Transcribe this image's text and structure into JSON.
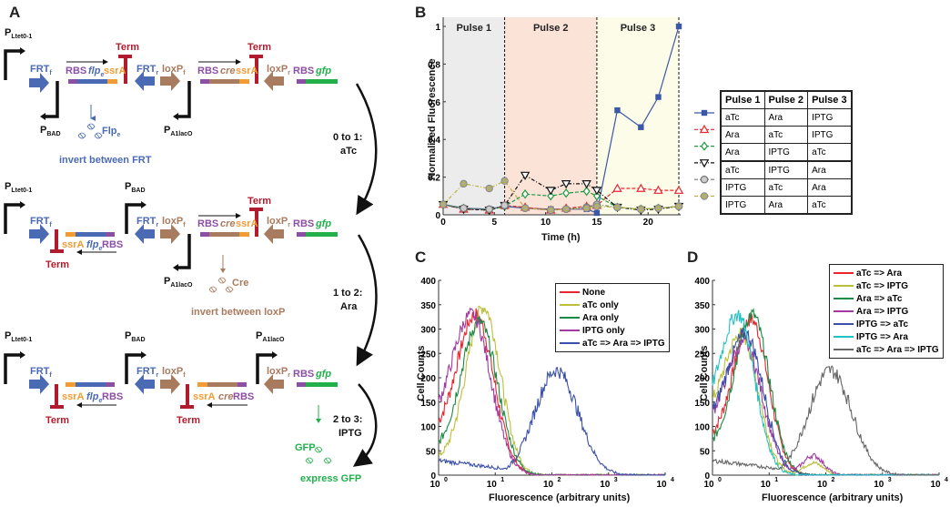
{
  "panels": {
    "A": {
      "label": "A"
    },
    "B": {
      "label": "B"
    },
    "C": {
      "label": "C"
    },
    "D": {
      "label": "D"
    }
  },
  "diagram": {
    "promoters": {
      "ltet": "P",
      "ltet_sub": "Ltet0-1",
      "bad": "P",
      "bad_sub": "BAD",
      "a1": "P",
      "a1_sub": "A1lacO"
    },
    "parts": {
      "frt_f": "FRT",
      "frt_f_sub": "f",
      "frt_r": "FRT",
      "frt_r_sub": "r",
      "loxp_f": "loxP",
      "loxp_f_sub": "f",
      "loxp_r": "loxP",
      "loxp_r_sub": "r",
      "rbs": "RBS",
      "flpe": "flp",
      "flpe_sub": "e",
      "ssra": "ssrA",
      "cre": "cre",
      "gfp": "gfp",
      "term": "Term"
    },
    "proteins": {
      "flpe": "Flp",
      "flpe_sub": "e",
      "flpe_action": "invert between FRT",
      "cre": "Cre",
      "cre_action": "invert between loxP",
      "gfp": "GFP",
      "gfp_action": "express GFP"
    },
    "transitions": [
      {
        "step": "0 to 1:",
        "inducer": "aTc"
      },
      {
        "step": "1 to 2:",
        "inducer": "Ara"
      },
      {
        "step": "2 to 3:",
        "inducer": "IPTG"
      }
    ],
    "colors": {
      "frt": "#4a6bb3",
      "rbs": "#8b4fa3",
      "ssra": "#f39b35",
      "lox": "#a87a5e",
      "gfp": "#22b04b",
      "term": "#b01c2e"
    }
  },
  "chart_data": [
    {
      "type": "line",
      "title": "",
      "xlabel": "Time (h)",
      "ylabel": "Normalized Fluorescence",
      "xlim": [
        0,
        23
      ],
      "ylim": [
        0,
        1
      ],
      "xticks": [
        0,
        5,
        10,
        15,
        20
      ],
      "yticks": [
        0,
        0.2,
        0.4,
        0.6,
        0.8,
        1
      ],
      "ytick_labels": [
        "0",
        "0.2",
        "0.4",
        "0.6",
        "0.8",
        "1"
      ],
      "regions": [
        {
          "label": "Pulse 1",
          "from": 0,
          "to": 6,
          "color": "#ececec"
        },
        {
          "label": "Pulse 2",
          "from": 6,
          "to": 15,
          "color": "#fbe3d8"
        },
        {
          "label": "Pulse 3",
          "from": 15,
          "to": 23,
          "color": "#fcfce8"
        }
      ],
      "x": [
        0,
        2,
        4.5,
        6,
        8,
        10.5,
        12,
        14,
        15,
        17,
        19.3,
        21,
        23
      ],
      "series": [
        {
          "name": "aTc / Ara / IPTG",
          "color": "#3a57a8",
          "marker": "square",
          "dash": "solid",
          "values": [
            0.055,
            0.035,
            0.03,
            0.045,
            0.035,
            0.03,
            0.03,
            0.03,
            0.01,
            0.555,
            0.465,
            0.625,
            1.0
          ]
        },
        {
          "name": "Ara / aTc / IPTG",
          "color": "#e8262e",
          "marker": "triangle-up",
          "dash": "dashed",
          "values": [
            0.055,
            0.03,
            0.025,
            0.05,
            0.04,
            0.025,
            0.035,
            0.045,
            0.05,
            0.14,
            0.14,
            0.13,
            0.13
          ]
        },
        {
          "name": "Ara / IPTG / aTc",
          "color": "#1f9a3e",
          "marker": "diamond",
          "dash": "dashed",
          "values": [
            0.055,
            0.035,
            0.025,
            0.045,
            0.11,
            0.1,
            0.115,
            0.125,
            0.1,
            0.04,
            0.03,
            0.035,
            0.045
          ]
        },
        {
          "name": "aTc / IPTG / Ara",
          "color": "#111111",
          "marker": "triangle-down",
          "dash": "dashdot",
          "values": [
            0.055,
            0.03,
            0.025,
            0.05,
            0.21,
            0.13,
            0.165,
            0.165,
            0.13,
            0.04,
            0.025,
            0.03,
            0.045
          ]
        },
        {
          "name": "IPTG / aTc / Ara",
          "color": "#777777",
          "marker": "circle",
          "dash": "dashdot",
          "values": [
            0.055,
            0.035,
            0.03,
            0.05,
            0.035,
            0.025,
            0.03,
            0.04,
            0.055,
            0.04,
            0.03,
            0.035,
            0.045
          ]
        },
        {
          "name": "IPTG / Ara / aTc",
          "color": "#b8b33a",
          "marker": "circle-square",
          "dash": "dashdot",
          "values": [
            0.055,
            0.165,
            0.14,
            0.18,
            0.035,
            0.025,
            0.03,
            0.035,
            0.045,
            0.04,
            0.03,
            0.035,
            0.045
          ]
        }
      ],
      "legend_table": {
        "headers": [
          "Pulse 1",
          "Pulse 2",
          "Pulse 3"
        ],
        "rows": [
          [
            "aTc",
            "Ara",
            "IPTG"
          ],
          [
            "Ara",
            "aTc",
            "IPTG"
          ],
          [
            "Ara",
            "IPTG",
            "aTc"
          ],
          [
            "aTc",
            "IPTG",
            "Ara"
          ],
          [
            "IPTG",
            "aTc",
            "Ara"
          ],
          [
            "IPTG",
            "Ara",
            "aTc"
          ]
        ]
      },
      "legend": "right"
    },
    {
      "type": "line",
      "title": "",
      "xlabel": "Fluorescence (arbitrary units)",
      "ylabel": "Cell Counts",
      "xscale": "log",
      "xlim": [
        1,
        10000
      ],
      "ylim": [
        0,
        400
      ],
      "xtick_labels": [
        "10",
        "10",
        "10",
        "10",
        "10"
      ],
      "xtick_exponents": [
        "0",
        "1",
        "2",
        "3",
        "4"
      ],
      "yticks": [
        0,
        50,
        100,
        150,
        200,
        250,
        300,
        350,
        400
      ],
      "legend": "top-right",
      "series": [
        {
          "name": "None",
          "color": "#e8262e",
          "peak_x": 4.5,
          "peak_y": 330,
          "width": 0.32,
          "left_base": 80
        },
        {
          "name": "aTc only",
          "color": "#bcbf3a",
          "peak_x": 6.2,
          "peak_y": 345,
          "width": 0.3,
          "left_base": 30
        },
        {
          "name": "Ara only",
          "color": "#1a8a45",
          "peak_x": 5.2,
          "peak_y": 315,
          "width": 0.32,
          "left_base": 45
        },
        {
          "name": "IPTG only",
          "color": "#a23aa0",
          "peak_x": 3.8,
          "peak_y": 330,
          "width": 0.34,
          "left_base": 95
        },
        {
          "name": "aTc => Ara => IPTG",
          "color": "#3a4fa8",
          "peak_x": 120,
          "peak_y": 215,
          "width": 0.38,
          "left_base": 30
        }
      ]
    },
    {
      "type": "line",
      "title": "",
      "xlabel": "Fluorescence (arbitrary units)",
      "ylabel": "Cell Counts",
      "xscale": "log",
      "xlim": [
        1,
        10000
      ],
      "ylim": [
        0,
        400
      ],
      "xtick_labels": [
        "10",
        "10",
        "10",
        "10",
        "10"
      ],
      "xtick_exponents": [
        "0",
        "1",
        "2",
        "3",
        "4"
      ],
      "yticks": [
        0,
        50,
        100,
        150,
        200,
        250,
        300,
        350,
        400
      ],
      "legend": "top-right",
      "series": [
        {
          "name": "aTc => Ara",
          "color": "#e8262e",
          "peak_x": 4.8,
          "peak_y": 320,
          "width": 0.3,
          "left_base": 70
        },
        {
          "name": "aTc => IPTG",
          "color": "#bcbf3a",
          "peak_x": 3.2,
          "peak_y": 290,
          "width": 0.3,
          "left_base": 110,
          "bump_x": 60,
          "bump_y": 25
        },
        {
          "name": "Ara => aTc",
          "color": "#1a8a45",
          "peak_x": 5.0,
          "peak_y": 330,
          "width": 0.3,
          "left_base": 55
        },
        {
          "name": "Ara => IPTG",
          "color": "#a23aa0",
          "peak_x": 3.6,
          "peak_y": 270,
          "width": 0.32,
          "left_base": 90,
          "bump_x": 60,
          "bump_y": 40
        },
        {
          "name": "IPTG => aTc",
          "color": "#3a4fa8",
          "peak_x": 3.8,
          "peak_y": 290,
          "width": 0.32,
          "left_base": 95
        },
        {
          "name": "IPTG => Ara",
          "color": "#27c1c4",
          "peak_x": 2.8,
          "peak_y": 330,
          "width": 0.3,
          "left_base": 115
        },
        {
          "name": "aTc => Ara => IPTG",
          "color": "#666666",
          "peak_x": 120,
          "peak_y": 215,
          "width": 0.38,
          "left_base": 30
        }
      ]
    }
  ]
}
